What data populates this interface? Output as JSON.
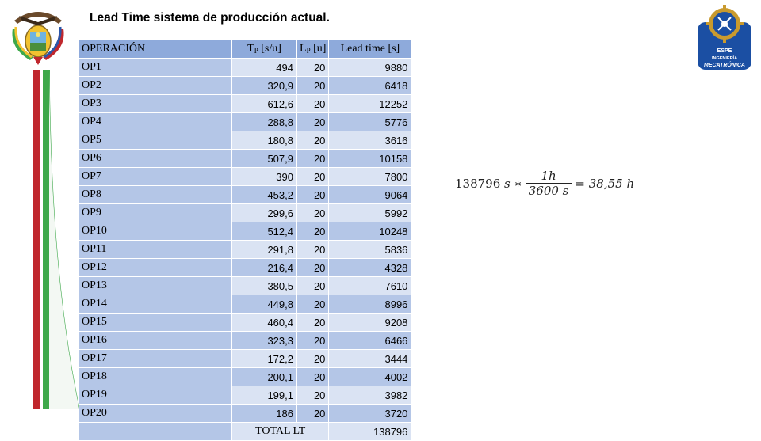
{
  "slide": {
    "title": "Lead Time sistema de producción actual."
  },
  "table": {
    "headers": {
      "operacion": "OPERACIÓN",
      "tp_main": "T",
      "tp_sub": "P",
      "tp_unit": " [s/u]",
      "lp_main": "L",
      "lp_sub": "P",
      "lp_unit": " [u]",
      "lead": "Lead time [s]"
    },
    "rows": [
      {
        "op": "OP1",
        "tp": "494",
        "lp": "20",
        "lt": "9880"
      },
      {
        "op": "OP2",
        "tp": "320,9",
        "lp": "20",
        "lt": "6418"
      },
      {
        "op": "OP3",
        "tp": "612,6",
        "lp": "20",
        "lt": "12252"
      },
      {
        "op": "OP4",
        "tp": "288,8",
        "lp": "20",
        "lt": "5776"
      },
      {
        "op": "OP5",
        "tp": "180,8",
        "lp": "20",
        "lt": "3616"
      },
      {
        "op": "OP6",
        "tp": "507,9",
        "lp": "20",
        "lt": "10158"
      },
      {
        "op": "OP7",
        "tp": "390",
        "lp": "20",
        "lt": "7800"
      },
      {
        "op": "OP8",
        "tp": "453,2",
        "lp": "20",
        "lt": "9064"
      },
      {
        "op": "OP9",
        "tp": "299,6",
        "lp": "20",
        "lt": "5992"
      },
      {
        "op": "OP10",
        "tp": "512,4",
        "lp": "20",
        "lt": "10248"
      },
      {
        "op": "OP11",
        "tp": "291,8",
        "lp": "20",
        "lt": "5836"
      },
      {
        "op": "OP12",
        "tp": "216,4",
        "lp": "20",
        "lt": "4328"
      },
      {
        "op": "OP13",
        "tp": "380,5",
        "lp": "20",
        "lt": "7610"
      },
      {
        "op": "OP14",
        "tp": "449,8",
        "lp": "20",
        "lt": "8996"
      },
      {
        "op": "OP15",
        "tp": "460,4",
        "lp": "20",
        "lt": "9208"
      },
      {
        "op": "OP16",
        "tp": "323,3",
        "lp": "20",
        "lt": "6466"
      },
      {
        "op": "OP17",
        "tp": "172,2",
        "lp": "20",
        "lt": "3444"
      },
      {
        "op": "OP18",
        "tp": "200,1",
        "lp": "20",
        "lt": "4002"
      },
      {
        "op": "OP19",
        "tp": "199,1",
        "lp": "20",
        "lt": "3982"
      },
      {
        "op": "OP20",
        "tp": "186",
        "lp": "20",
        "lt": "3720"
      }
    ],
    "total_label": "TOTAL LT",
    "total_value": "138796"
  },
  "formula": {
    "value": "138796",
    "unit_s": "s",
    "times": "∗",
    "numerator": "1h",
    "denominator": "3600 s",
    "equals": "=",
    "result": "38,55 h"
  },
  "logos": {
    "left_emblem": "ecuador-coat-of-arms-icon",
    "right_logo": "espe-ingenieria-mecatronica-logo",
    "right_logo_text": [
      "ESPE",
      "INGENIERÍA",
      "MECATRÓNICA"
    ]
  },
  "colors": {
    "header_bg": "#8eaadb",
    "row_dark": "#b4c6e7",
    "row_light": "#dae3f3",
    "stripe_red": "#c0272d",
    "stripe_green": "#3ea84a",
    "logo_blue": "#1b4fa3"
  }
}
